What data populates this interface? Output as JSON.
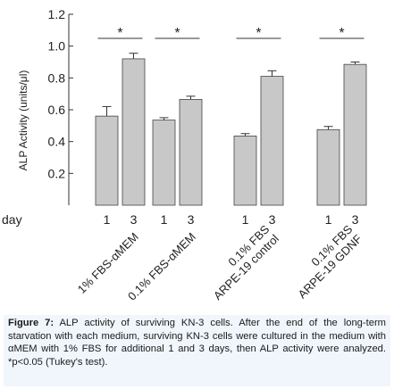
{
  "chart_data": {
    "type": "bar",
    "ylabel": "ALP Activity (units/μl)",
    "ylim": [
      0,
      1.2
    ],
    "yticks": [
      "0.2",
      "0.4",
      "0.6",
      "0.8",
      "1.0",
      "1.2"
    ],
    "x_row_label": "day",
    "days": [
      "1",
      "3"
    ],
    "groups": [
      {
        "label": [
          "1% FBS-αMEM"
        ],
        "values": [
          0.56,
          0.92
        ],
        "errors": [
          0.06,
          0.035
        ],
        "significance": "*"
      },
      {
        "label": [
          "0.1% FBS-αMEM"
        ],
        "values": [
          0.535,
          0.665
        ],
        "errors": [
          0.015,
          0.02
        ],
        "significance": "*"
      },
      {
        "label": [
          "0.1% FBS",
          "ARPE-19 control"
        ],
        "values": [
          0.435,
          0.81
        ],
        "errors": [
          0.015,
          0.035
        ],
        "significance": "*"
      },
      {
        "label": [
          "0.1% FBS",
          "ARPE-19 GDNF"
        ],
        "values": [
          0.475,
          0.885
        ],
        "errors": [
          0.02,
          0.015
        ],
        "significance": "*"
      }
    ],
    "bar_color": "#c8c8c8",
    "grid": false
  },
  "caption": {
    "figure_label": "Figure 7:",
    "text": " ALP activity of surviving KN-3 cells. After the end of the long-term starvation with each medium, surviving KN-3 cells were cultured in the medium with αMEM with 1% FBS for additional 1 and 3 days, then ALP activity were analyzed. *p<0.05 (Tukey's test)."
  }
}
